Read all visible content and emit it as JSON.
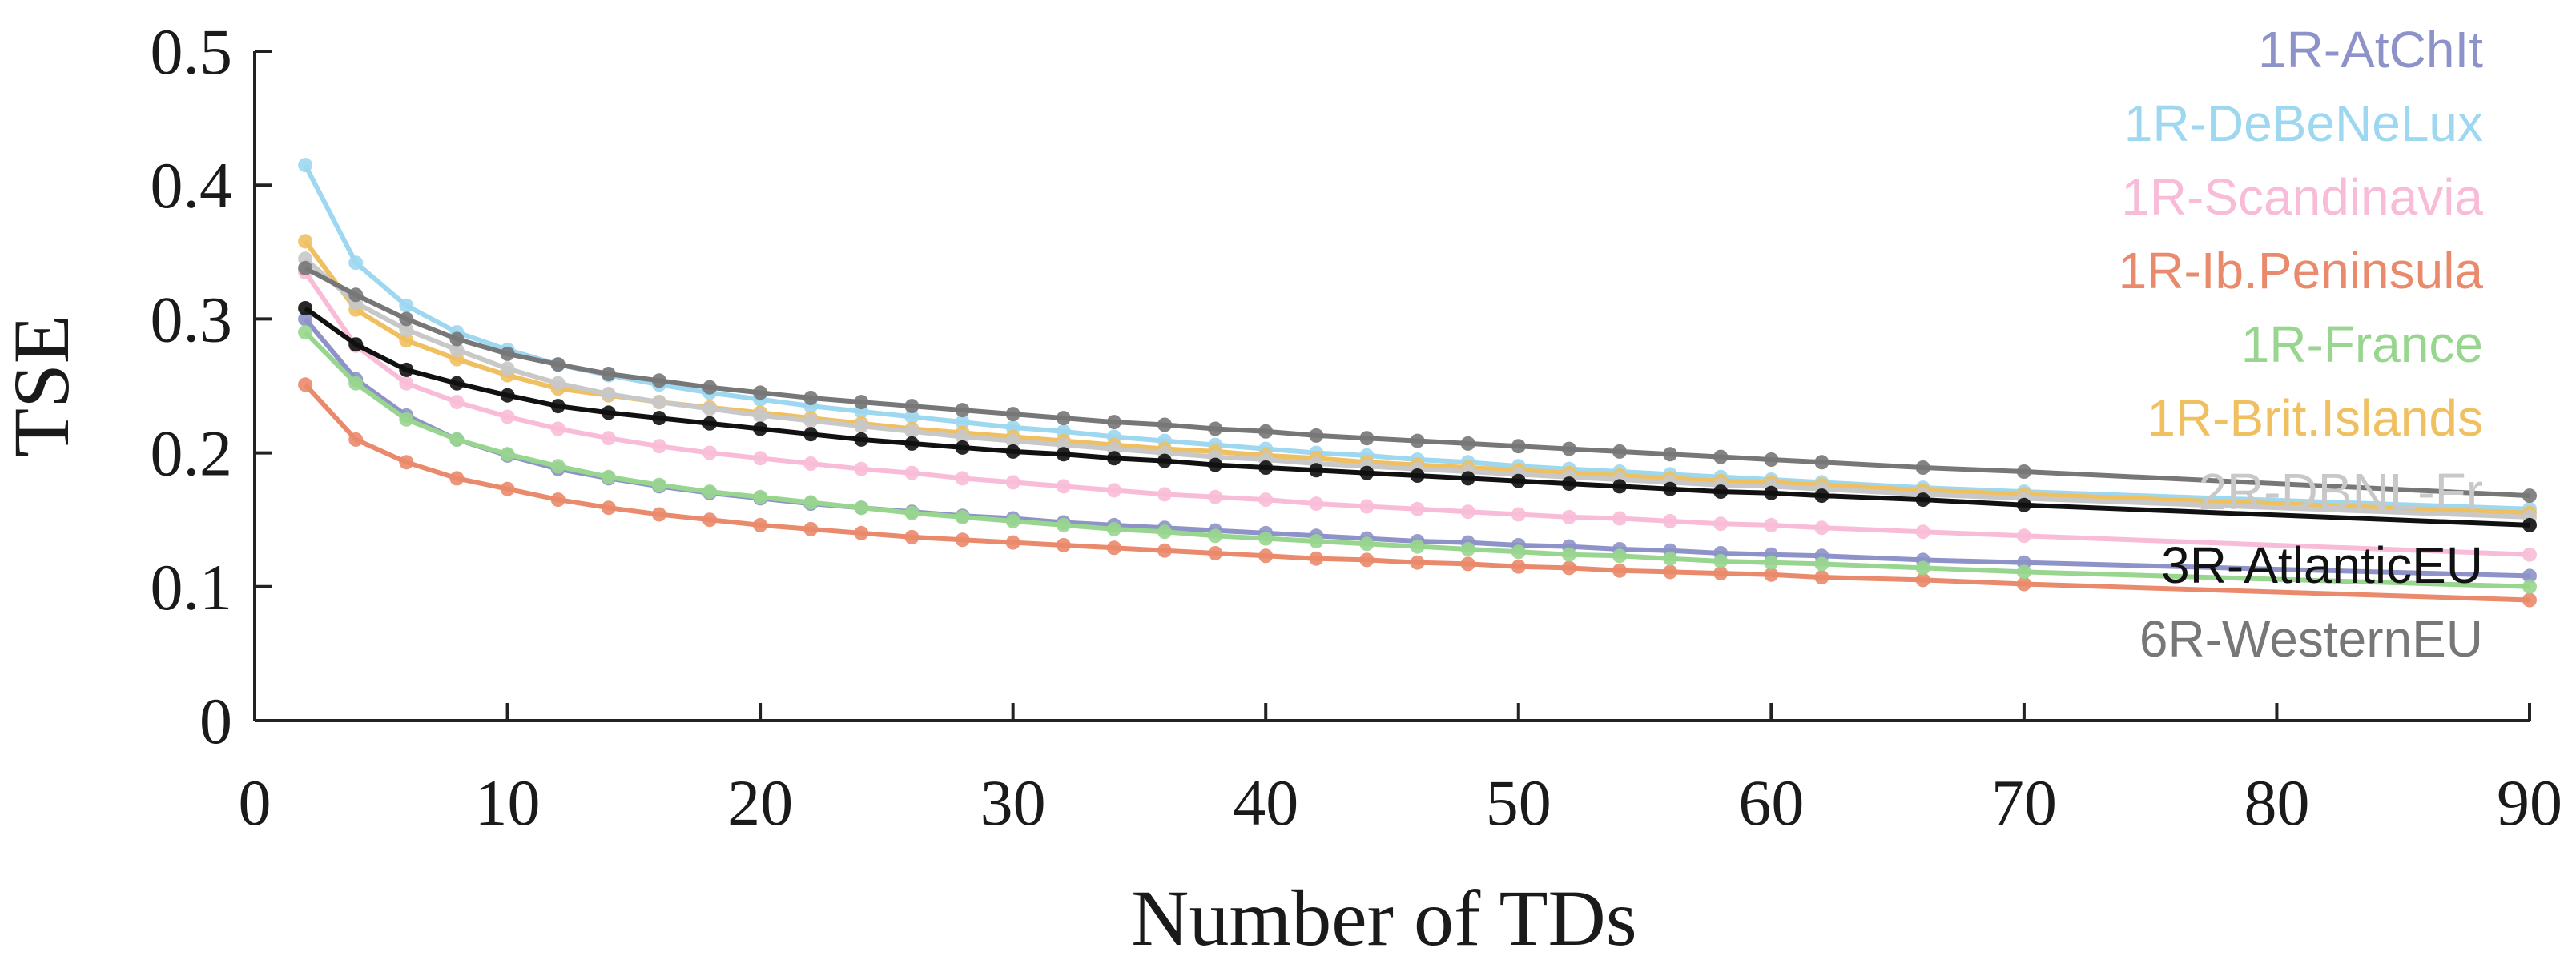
{
  "chart_data": {
    "type": "line",
    "title": "",
    "xlabel": "Number of TDs",
    "ylabel": "TSE",
    "xlim": [
      0,
      90
    ],
    "ylim": [
      0,
      0.5
    ],
    "xticks": [
      0,
      10,
      20,
      30,
      40,
      50,
      60,
      70,
      80,
      90
    ],
    "xtick_labels": [
      "0",
      "10",
      "20",
      "30",
      "40",
      "50",
      "60",
      "70",
      "80",
      "90"
    ],
    "yticks": [
      0,
      0.1,
      0.2,
      0.3,
      0.4,
      0.5
    ],
    "ytick_labels": [
      "0",
      "0.1",
      "0.2",
      "0.3",
      "0.4",
      "0.5"
    ],
    "grid": false,
    "legend_position": "right",
    "x": [
      2,
      4,
      6,
      8,
      10,
      12,
      14,
      16,
      18,
      20,
      22,
      24,
      26,
      28,
      30,
      32,
      34,
      36,
      38,
      40,
      42,
      44,
      46,
      48,
      50,
      52,
      54,
      56,
      58,
      60,
      62,
      66,
      70,
      90
    ],
    "series": [
      {
        "name": "1R-AtChIt",
        "color": "#8d92c8",
        "values": [
          0.3,
          0.255,
          0.228,
          0.21,
          0.198,
          0.188,
          0.181,
          0.175,
          0.17,
          0.166,
          0.162,
          0.159,
          0.156,
          0.153,
          0.151,
          0.148,
          0.146,
          0.144,
          0.142,
          0.14,
          0.138,
          0.136,
          0.134,
          0.133,
          0.131,
          0.13,
          0.128,
          0.127,
          0.125,
          0.124,
          0.123,
          0.12,
          0.118,
          0.108
        ]
      },
      {
        "name": "1R-DeBeNeLux",
        "color": "#9dd7f0",
        "values": [
          0.415,
          0.342,
          0.31,
          0.29,
          0.277,
          0.266,
          0.258,
          0.251,
          0.245,
          0.24,
          0.235,
          0.231,
          0.227,
          0.223,
          0.219,
          0.216,
          0.212,
          0.209,
          0.206,
          0.203,
          0.2,
          0.198,
          0.195,
          0.193,
          0.19,
          0.188,
          0.186,
          0.184,
          0.182,
          0.18,
          0.178,
          0.174,
          0.171,
          0.158
        ]
      },
      {
        "name": "1R-Scandinavia",
        "color": "#f9bcd8",
        "values": [
          0.335,
          0.28,
          0.252,
          0.238,
          0.227,
          0.218,
          0.211,
          0.205,
          0.2,
          0.196,
          0.192,
          0.188,
          0.185,
          0.181,
          0.178,
          0.175,
          0.172,
          0.169,
          0.167,
          0.165,
          0.162,
          0.16,
          0.158,
          0.156,
          0.154,
          0.152,
          0.151,
          0.149,
          0.147,
          0.146,
          0.144,
          0.141,
          0.138,
          0.124
        ]
      },
      {
        "name": "1R-Ib.Peninsula",
        "color": "#ea8a6c",
        "values": [
          0.251,
          0.21,
          0.193,
          0.181,
          0.173,
          0.165,
          0.159,
          0.154,
          0.15,
          0.146,
          0.143,
          0.14,
          0.137,
          0.135,
          0.133,
          0.131,
          0.129,
          0.127,
          0.125,
          0.123,
          0.121,
          0.12,
          0.118,
          0.117,
          0.115,
          0.114,
          0.112,
          0.111,
          0.11,
          0.109,
          0.107,
          0.105,
          0.102,
          0.09
        ]
      },
      {
        "name": "1R-France",
        "color": "#98d68f",
        "values": [
          0.29,
          0.252,
          0.225,
          0.21,
          0.199,
          0.19,
          0.182,
          0.176,
          0.171,
          0.167,
          0.163,
          0.159,
          0.155,
          0.152,
          0.149,
          0.146,
          0.143,
          0.141,
          0.138,
          0.136,
          0.134,
          0.132,
          0.13,
          0.128,
          0.126,
          0.124,
          0.123,
          0.121,
          0.119,
          0.118,
          0.117,
          0.114,
          0.111,
          0.1
        ]
      },
      {
        "name": "1R-Brit.Islands",
        "color": "#f0c060",
        "values": [
          0.358,
          0.307,
          0.284,
          0.27,
          0.258,
          0.248,
          0.243,
          0.238,
          0.234,
          0.23,
          0.226,
          0.222,
          0.218,
          0.215,
          0.212,
          0.209,
          0.206,
          0.203,
          0.201,
          0.198,
          0.196,
          0.193,
          0.191,
          0.189,
          0.187,
          0.185,
          0.183,
          0.181,
          0.179,
          0.178,
          0.176,
          0.172,
          0.169,
          0.155
        ]
      },
      {
        "name": "2R-DBNL-Fr",
        "color": "#c8c8c8",
        "values": [
          0.345,
          0.312,
          0.292,
          0.277,
          0.263,
          0.252,
          0.244,
          0.238,
          0.233,
          0.228,
          0.224,
          0.22,
          0.216,
          0.212,
          0.209,
          0.206,
          0.203,
          0.2,
          0.197,
          0.195,
          0.192,
          0.19,
          0.188,
          0.186,
          0.184,
          0.182,
          0.18,
          0.178,
          0.176,
          0.175,
          0.173,
          0.169,
          0.166,
          0.152
        ]
      },
      {
        "name": "3R-AtlanticEU",
        "color": "#111111",
        "values": [
          0.308,
          0.281,
          0.262,
          0.252,
          0.243,
          0.235,
          0.23,
          0.226,
          0.222,
          0.218,
          0.214,
          0.21,
          0.207,
          0.204,
          0.201,
          0.199,
          0.196,
          0.194,
          0.191,
          0.189,
          0.187,
          0.185,
          0.183,
          0.181,
          0.179,
          0.177,
          0.175,
          0.173,
          0.171,
          0.17,
          0.168,
          0.165,
          0.161,
          0.146
        ]
      },
      {
        "name": "6R-WesternEU",
        "color": "#777777",
        "values": [
          0.338,
          0.318,
          0.3,
          0.285,
          0.274,
          0.266,
          0.259,
          0.254,
          0.249,
          0.245,
          0.241,
          0.238,
          0.235,
          0.232,
          0.229,
          0.226,
          0.223,
          0.221,
          0.218,
          0.216,
          0.213,
          0.211,
          0.209,
          0.207,
          0.205,
          0.203,
          0.201,
          0.199,
          0.197,
          0.195,
          0.193,
          0.189,
          0.186,
          0.168
        ]
      }
    ]
  }
}
